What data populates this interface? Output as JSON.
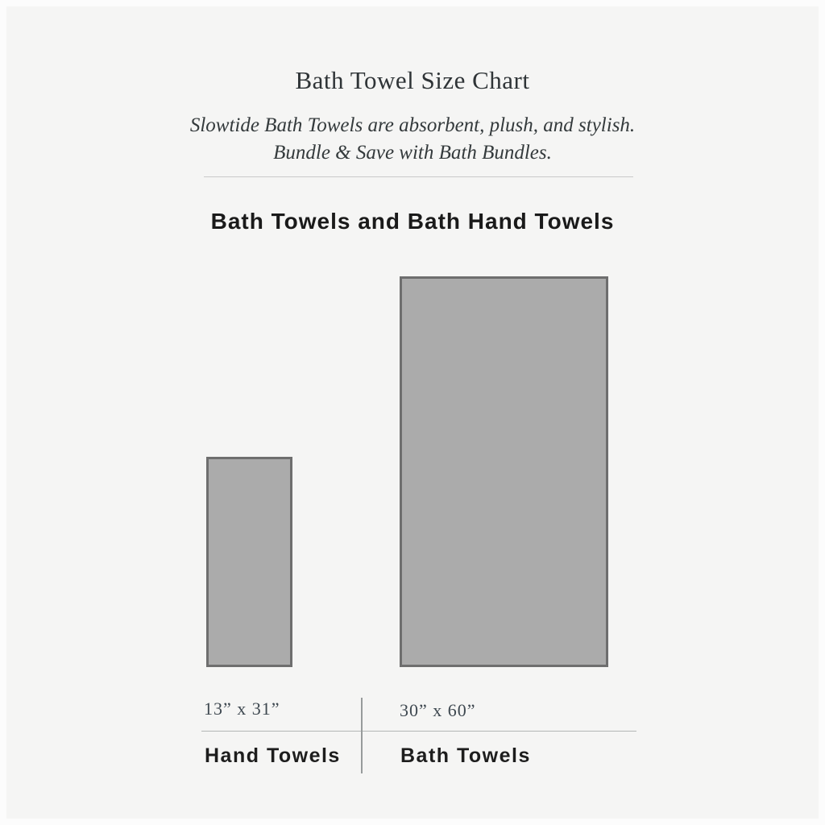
{
  "header": {
    "title": "Bath Towel Size Chart",
    "subtitle_line1": "Slowtide Bath Towels are absorbent, plush, and stylish.",
    "subtitle_line2": "Bundle &amp; Save with Bath Bundles."
  },
  "section": {
    "heading": "Bath Towels and Bath Hand Towels"
  },
  "towels": [
    {
      "name": "Hand Towels",
      "size_label": "13” x 31”",
      "width_in": 13,
      "height_in": 31
    },
    {
      "name": "Bath Towels",
      "size_label": "30” x 60”",
      "width_in": 30,
      "height_in": 60
    }
  ],
  "colors": {
    "background": "#f5f5f4",
    "frame": "#fcfcfc",
    "towel_fill": "#ababab",
    "towel_border": "#6e6e6e",
    "title_text": "#2f3437",
    "subtitle_text": "#343a3c",
    "heading_text": "#1a1a1a",
    "size_text": "#3e4850",
    "label_text": "#1d1d1d",
    "divider": "#c9c9c9"
  }
}
